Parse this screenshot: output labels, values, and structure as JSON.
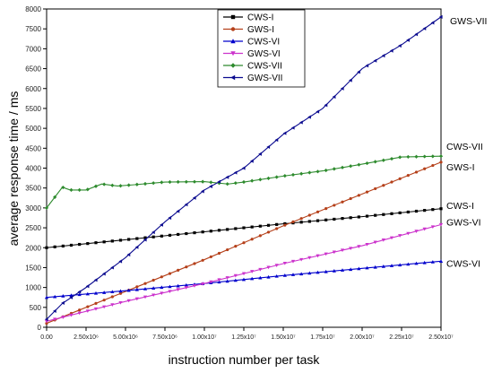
{
  "chart_data": {
    "type": "line",
    "xlabel": "instruction number per task",
    "ylabel": "average response time / ms",
    "xlim": [
      0,
      25000000
    ],
    "ylim": [
      0,
      8000
    ],
    "x_ticks": [
      "0.00",
      "2.50x10⁶",
      "5.00x10⁶",
      "7.50x10⁶",
      "1.00x10⁷",
      "1.25x10⁷",
      "1.50x10⁷",
      "1.75x10⁷",
      "2.00x10⁷",
      "2.25x10⁷",
      "2.50x10⁷"
    ],
    "y_ticks": [
      "0",
      "500",
      "1000",
      "1500",
      "2000",
      "2500",
      "3000",
      "3500",
      "4000",
      "4500",
      "5000",
      "5500",
      "6000",
      "6500",
      "7000",
      "7500",
      "8000"
    ],
    "legend_position": "top-center",
    "series": [
      {
        "name": "CWS-I",
        "label": "CWS-I",
        "color": "#000000",
        "marker": "square",
        "x": [
          0,
          5000000,
          10000000,
          15000000,
          20000000,
          25000000
        ],
        "values": [
          2000,
          2200,
          2400,
          2600,
          2780,
          2980
        ]
      },
      {
        "name": "GWS-I",
        "label": "GWS-I",
        "color": "#b5401a",
        "marker": "circle",
        "x": [
          0,
          5000000,
          10000000,
          15000000,
          20000000,
          25000000
        ],
        "values": [
          100,
          900,
          1700,
          2550,
          3350,
          4150
        ]
      },
      {
        "name": "CWS-VI",
        "label": "CWS-VI",
        "color": "#0000cc",
        "marker": "triangle-up",
        "x": [
          0,
          5000000,
          10000000,
          15000000,
          20000000,
          25000000
        ],
        "values": [
          750,
          920,
          1100,
          1300,
          1480,
          1660
        ]
      },
      {
        "name": "GWS-VI",
        "label": "GWS-VI",
        "color": "#cc33cc",
        "marker": "triangle-down",
        "x": [
          0,
          5000000,
          10000000,
          15000000,
          20000000,
          25000000
        ],
        "values": [
          150,
          650,
          1100,
          1600,
          2050,
          2580
        ]
      },
      {
        "name": "CWS-VII",
        "label": "CWS-VII",
        "color": "#2e8b2e",
        "marker": "diamond",
        "x": [
          0,
          1000000,
          1500000,
          2500000,
          3500000,
          4500000,
          5500000,
          7500000,
          10000000,
          11500000,
          12500000,
          15000000,
          17500000,
          20000000,
          22500000,
          25000000
        ],
        "values": [
          3000,
          3520,
          3450,
          3450,
          3600,
          3550,
          3580,
          3650,
          3660,
          3600,
          3650,
          3800,
          3930,
          4100,
          4280,
          4300
        ]
      },
      {
        "name": "GWS-VII",
        "label": "GWS-VII",
        "color": "#0a0a8f",
        "marker": "triangle-left",
        "x": [
          0,
          1000000,
          2500000,
          5000000,
          7500000,
          10000000,
          12500000,
          15000000,
          17500000,
          20000000,
          22500000,
          25000000
        ],
        "values": [
          200,
          600,
          1000,
          1750,
          2650,
          3450,
          4000,
          4850,
          5500,
          6500,
          7100,
          7800
        ]
      }
    ]
  }
}
